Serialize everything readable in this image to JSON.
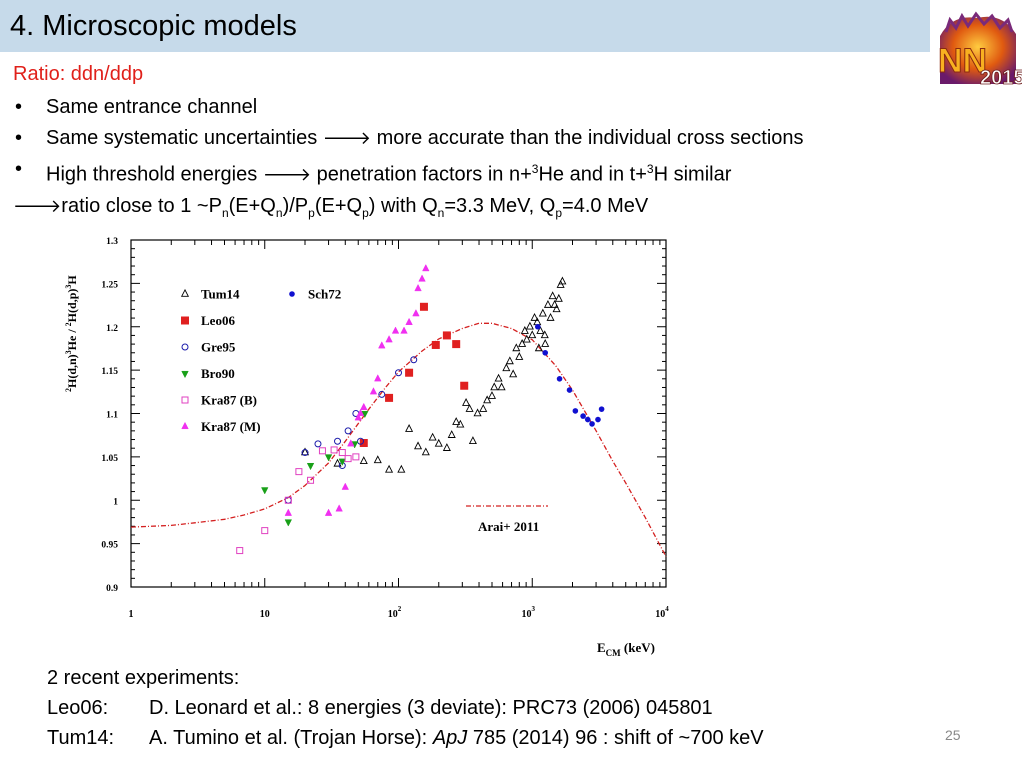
{
  "slide": {
    "title": "4. Microscopic models",
    "subtitle": "Ratio: ddn/ddp",
    "bullets": [
      "Same entrance channel",
      "Same systematic uncertainties",
      "more accurate than the individual cross sections",
      "High threshold energies",
      "penetration factors in n+",
      "He and in t+",
      "H similar"
    ],
    "bullet_marker": "•",
    "arrow_glyph": "🡒",
    "conclusion": {
      "lead": "ratio close to 1 ~P",
      "parts": [
        "n",
        "(E+Q",
        "n",
        ")/P",
        "p",
        "(E+Q",
        "p",
        ")  with Q",
        "n",
        "=3.3 MeV, Q",
        "p",
        "=4.0  MeV"
      ]
    },
    "sup3": "3",
    "logo_text": "NN2015",
    "colors": {
      "title_bar": "#c6daea",
      "subtitle": "#e0201a",
      "fit_line": "#d42020"
    },
    "bottom": {
      "intro": "2 recent experiments:",
      "rows": [
        {
          "tag": "Leo06:",
          "text": "D. Leonard et al.: 8 energies (3 deviate): PRC73 (2006) 045801"
        },
        {
          "tag": "Tum14:",
          "pre": "A. Tumino et al. (Trojan Horse): ",
          "italic": "ApJ",
          "post": " 785 (2014) 96 : shift of ~700 keV"
        }
      ]
    },
    "page_number": "25"
  },
  "chart_data": {
    "type": "scatter",
    "x_scale": "log",
    "xlim": [
      1,
      10000
    ],
    "ylim": [
      0.9,
      1.3
    ],
    "x_ticks": [
      {
        "label": "1",
        "exp": ""
      },
      {
        "label": "10",
        "exp": ""
      },
      {
        "label": "10",
        "exp": "2"
      },
      {
        "label": "10",
        "exp": "3"
      },
      {
        "label": "10",
        "exp": "4"
      }
    ],
    "y_ticks": [
      "0.9",
      "0.95",
      "1",
      "1.05",
      "1.1",
      "1.15",
      "1.2",
      "1.25",
      "1.3"
    ],
    "ylabel": {
      "p1": "2",
      "t1": "H(d,n)",
      "p2": "3",
      "t2": "He / ",
      "p3": "2",
      "t3": "H(d,p)",
      "p4": "3",
      "t4": "H"
    },
    "xlabel": {
      "main": "E",
      "sub": "CM",
      "unit": " (keV)"
    },
    "legend_position": "left",
    "series": [
      {
        "name": "Tum14",
        "marker": "triangle-open",
        "color": "#000000",
        "points": [
          [
            20,
            1.055
          ],
          [
            35,
            1.042
          ],
          [
            55,
            1.045
          ],
          [
            70,
            1.046
          ],
          [
            85,
            1.035
          ],
          [
            105,
            1.035
          ],
          [
            120,
            1.082
          ],
          [
            140,
            1.062
          ],
          [
            160,
            1.055
          ],
          [
            180,
            1.072
          ],
          [
            200,
            1.065
          ],
          [
            230,
            1.06
          ],
          [
            250,
            1.075
          ],
          [
            270,
            1.09
          ],
          [
            290,
            1.087
          ],
          [
            320,
            1.112
          ],
          [
            340,
            1.105
          ],
          [
            360,
            1.068
          ],
          [
            390,
            1.1
          ],
          [
            430,
            1.105
          ],
          [
            460,
            1.115
          ],
          [
            500,
            1.12
          ],
          [
            520,
            1.13
          ],
          [
            560,
            1.14
          ],
          [
            590,
            1.13
          ],
          [
            640,
            1.152
          ],
          [
            680,
            1.16
          ],
          [
            720,
            1.145
          ],
          [
            760,
            1.175
          ],
          [
            800,
            1.165
          ],
          [
            840,
            1.18
          ],
          [
            880,
            1.195
          ],
          [
            910,
            1.185
          ],
          [
            960,
            1.2
          ],
          [
            1000,
            1.19
          ],
          [
            1040,
            1.21
          ],
          [
            1090,
            1.205
          ],
          [
            1150,
            1.195
          ],
          [
            1200,
            1.215
          ],
          [
            1250,
            1.18
          ],
          [
            1310,
            1.225
          ],
          [
            1370,
            1.21
          ],
          [
            1420,
            1.235
          ],
          [
            1470,
            1.225
          ],
          [
            1520,
            1.22
          ],
          [
            1580,
            1.232
          ],
          [
            1630,
            1.248
          ],
          [
            1680,
            1.252
          ],
          [
            1120,
            1.175
          ],
          [
            1240,
            1.19
          ]
        ]
      },
      {
        "name": "Sch72",
        "marker": "circle-filled",
        "color": "#1010d0",
        "points": [
          [
            1100,
            1.2
          ],
          [
            1250,
            1.17
          ],
          [
            1600,
            1.14
          ],
          [
            1900,
            1.127
          ],
          [
            2100,
            1.103
          ],
          [
            2400,
            1.097
          ],
          [
            2600,
            1.093
          ],
          [
            2800,
            1.088
          ],
          [
            3100,
            1.093
          ],
          [
            3300,
            1.105
          ]
        ]
      },
      {
        "name": "Leo06",
        "marker": "square-filled",
        "color": "#e02020",
        "points": [
          [
            55,
            1.066
          ],
          [
            85,
            1.118
          ],
          [
            120,
            1.147
          ],
          [
            155,
            1.223
          ],
          [
            190,
            1.179
          ],
          [
            230,
            1.19
          ],
          [
            270,
            1.18
          ],
          [
            310,
            1.132
          ]
        ]
      },
      {
        "name": "Gre95",
        "marker": "circle-open",
        "color": "#1a1aaa",
        "points": [
          [
            15,
            1.0
          ],
          [
            20,
            1.055
          ],
          [
            25,
            1.065
          ],
          [
            35,
            1.068
          ],
          [
            38,
            1.04
          ],
          [
            42,
            1.08
          ],
          [
            48,
            1.1
          ],
          [
            52,
            1.068
          ],
          [
            75,
            1.122
          ],
          [
            100,
            1.147
          ],
          [
            130,
            1.162
          ]
        ]
      },
      {
        "name": "Bro90",
        "marker": "triangle-down-filled",
        "color": "#18a018",
        "points": [
          [
            10,
            1.012
          ],
          [
            15,
            0.975
          ],
          [
            22,
            1.04
          ],
          [
            30,
            1.05
          ],
          [
            38,
            1.045
          ],
          [
            47,
            1.065
          ],
          [
            56,
            1.1
          ]
        ]
      },
      {
        "name": "Kra87 (B)",
        "marker": "square-open",
        "color": "#e040c0",
        "points": [
          [
            6.5,
            0.942
          ],
          [
            10,
            0.965
          ],
          [
            15,
            1.0
          ],
          [
            18,
            1.033
          ],
          [
            22,
            1.023
          ],
          [
            27,
            1.057
          ],
          [
            33,
            1.058
          ],
          [
            38,
            1.055
          ],
          [
            42,
            1.048
          ],
          [
            48,
            1.05
          ]
        ]
      },
      {
        "name": "Kra87 (M)",
        "marker": "triangle-filled",
        "color": "#f030f0",
        "points": [
          [
            15,
            0.985
          ],
          [
            30,
            0.985
          ],
          [
            36,
            0.99
          ],
          [
            40,
            1.015
          ],
          [
            44,
            1.065
          ],
          [
            50,
            1.095
          ],
          [
            52,
            1.1
          ],
          [
            55,
            1.107
          ],
          [
            65,
            1.125
          ],
          [
            70,
            1.14
          ],
          [
            75,
            1.178
          ],
          [
            85,
            1.185
          ],
          [
            95,
            1.195
          ],
          [
            110,
            1.195
          ],
          [
            120,
            1.205
          ],
          [
            135,
            1.215
          ],
          [
            140,
            1.244
          ],
          [
            150,
            1.255
          ],
          [
            160,
            1.267
          ]
        ]
      }
    ],
    "fit": {
      "name": "Arai+ 2011",
      "style": "dash-dot",
      "color": "#d42020",
      "points": [
        [
          1,
          0.969
        ],
        [
          2,
          0.971
        ],
        [
          3,
          0.974
        ],
        [
          5,
          0.978
        ],
        [
          7,
          0.983
        ],
        [
          10,
          0.99
        ],
        [
          15,
          1.003
        ],
        [
          20,
          1.017
        ],
        [
          30,
          1.043
        ],
        [
          40,
          1.068
        ],
        [
          60,
          1.105
        ],
        [
          80,
          1.13
        ],
        [
          100,
          1.148
        ],
        [
          150,
          1.172
        ],
        [
          200,
          1.186
        ],
        [
          300,
          1.198
        ],
        [
          400,
          1.204
        ],
        [
          500,
          1.204
        ],
        [
          700,
          1.198
        ],
        [
          1000,
          1.185
        ],
        [
          1500,
          1.155
        ],
        [
          2000,
          1.127
        ],
        [
          3000,
          1.08
        ],
        [
          4000,
          1.045
        ],
        [
          5000,
          1.02
        ],
        [
          7000,
          0.98
        ],
        [
          10000,
          0.935
        ]
      ]
    }
  }
}
